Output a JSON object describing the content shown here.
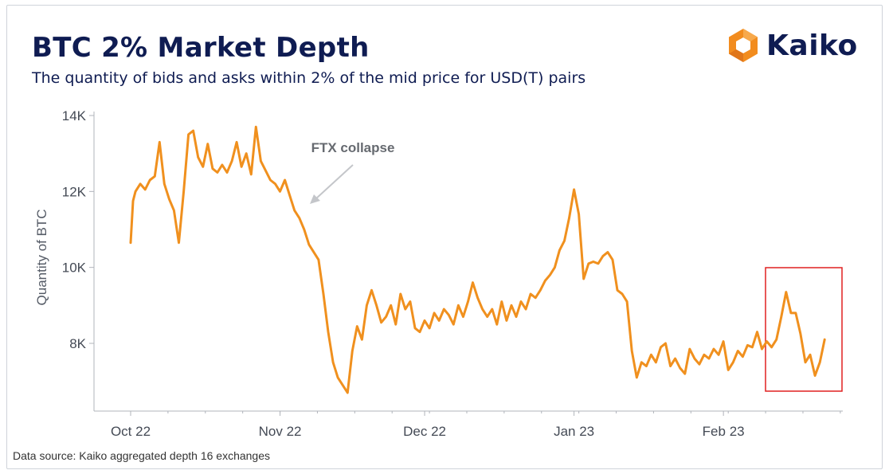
{
  "title": "BTC 2% Market Depth",
  "subtitle": "The quantity of bids and asks within 2% of the mid price for USD(T) pairs",
  "logo": {
    "name": "kaiko-logo",
    "text": "Kaiko",
    "color": "#f28c1e"
  },
  "source": "Data source: Kaiko aggregated depth 16 exchanges",
  "colors": {
    "line": "#f0901e",
    "highlight": "#e02020",
    "axis": "#b0b4bb",
    "annotation": "#c4c6ca"
  },
  "chart_data": {
    "type": "line",
    "title": "BTC 2% Market Depth",
    "xlabel": "",
    "ylabel": "Quantity of BTC",
    "ylim": [
      6000,
      14200
    ],
    "grid": false,
    "x_ticks": [
      {
        "label": "Oct 22",
        "day": 1
      },
      {
        "label": "Nov 22",
        "day": 32
      },
      {
        "label": "Dec 22",
        "day": 62
      },
      {
        "label": "Jan 23",
        "day": 93
      },
      {
        "label": "Feb 23",
        "day": 124
      }
    ],
    "y_ticks": [
      {
        "label": "8K",
        "value": 8000
      },
      {
        "label": "10K",
        "value": 10000
      },
      {
        "label": "12K",
        "value": 12000
      },
      {
        "label": "14K",
        "value": 14000
      }
    ],
    "x_range": [
      1,
      145
    ],
    "annotations": [
      {
        "text": "FTX collapse",
        "day": 38
      }
    ],
    "highlight": {
      "x_range": [
        134,
        149
      ],
      "y_range": [
        6800,
        10000
      ]
    },
    "series": [
      {
        "x": [
          1,
          1.5,
          2,
          3,
          4,
          5,
          6,
          7,
          8,
          9,
          10,
          11,
          12,
          13,
          14,
          15,
          16,
          17,
          18,
          19,
          20,
          21,
          22,
          23,
          24,
          25,
          26,
          27,
          28,
          29,
          30,
          31,
          32,
          33,
          34,
          35,
          36,
          37,
          38,
          39,
          40,
          41,
          42,
          43,
          44,
          45,
          46,
          47,
          48,
          49,
          50,
          51,
          52,
          53,
          54,
          55,
          56,
          57,
          58,
          59,
          60,
          61,
          62,
          63,
          64,
          65,
          66,
          67,
          68,
          69,
          70,
          71,
          72,
          73,
          74,
          75,
          76,
          77,
          78,
          79,
          80,
          81,
          82,
          83,
          84,
          85,
          86,
          87,
          88,
          89,
          90,
          91,
          92,
          93,
          94,
          95,
          96,
          97,
          98,
          99,
          100,
          101,
          102,
          103,
          104,
          105,
          106,
          107,
          108,
          109,
          110,
          111,
          112,
          113,
          114,
          115,
          116,
          117,
          118,
          119,
          120,
          121,
          122,
          123,
          124,
          125,
          126,
          127,
          128,
          129,
          130,
          131,
          132,
          133,
          134,
          135,
          136,
          137,
          138,
          139,
          140,
          141,
          142,
          143,
          144,
          145
        ],
        "y": [
          10650,
          11750,
          12000,
          12200,
          12050,
          12300,
          12400,
          13300,
          12200,
          11800,
          11500,
          10650,
          12000,
          13500,
          13600,
          12900,
          12650,
          13250,
          12600,
          12500,
          12700,
          12500,
          12800,
          13300,
          12650,
          13000,
          12450,
          13700,
          12800,
          12550,
          12300,
          12200,
          12000,
          12300,
          11900,
          11500,
          11300,
          11000,
          10600,
          10400,
          10200,
          9300,
          8300,
          7500,
          7100,
          6900,
          6700,
          7800,
          8450,
          8100,
          9000,
          9400,
          9000,
          8550,
          8700,
          9000,
          8500,
          9300,
          8900,
          9100,
          8400,
          8300,
          8600,
          8400,
          8800,
          8600,
          8900,
          8750,
          8500,
          9000,
          8700,
          9100,
          9600,
          9200,
          8900,
          8700,
          8900,
          8500,
          9100,
          8600,
          9000,
          8700,
          9100,
          8900,
          9300,
          9200,
          9400,
          9650,
          9800,
          10000,
          10450,
          10700,
          11300,
          12050,
          11400,
          9700,
          10100,
          10150,
          10100,
          10300,
          10400,
          10200,
          9400,
          9300,
          9100,
          7800,
          7100,
          7500,
          7400,
          7700,
          7500,
          7900,
          8000,
          7400,
          7600,
          7350,
          7200,
          7850,
          7600,
          7450,
          7700,
          7600,
          7850,
          7700,
          8050,
          7300,
          7500,
          7800,
          7650,
          7950,
          7900,
          8300,
          7850,
          8050,
          7900,
          8100,
          8700,
          9350,
          8800,
          8800,
          8250,
          7500,
          7700,
          7150,
          7500,
          8100
        ]
      }
    ]
  }
}
